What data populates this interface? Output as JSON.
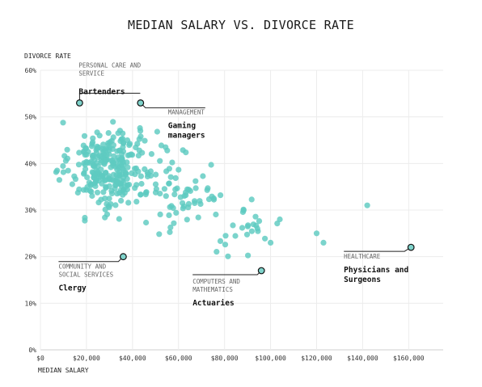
{
  "chart_data": {
    "type": "scatter",
    "title": "MEDIAN SALARY VS. DIVORCE RATE",
    "xlabel": "MEDIAN SALARY",
    "ylabel": "DIVORCE RATE",
    "xlim": [
      0,
      175000
    ],
    "ylim": [
      0,
      60
    ],
    "x_ticks": [
      {
        "value": 0,
        "label": "$0"
      },
      {
        "value": 20000,
        "label": "$20,000"
      },
      {
        "value": 40000,
        "label": "$40,000"
      },
      {
        "value": 60000,
        "label": "$60,000"
      },
      {
        "value": 80000,
        "label": "$80,000"
      },
      {
        "value": 100000,
        "label": "$100,000"
      },
      {
        "value": 120000,
        "label": "$120,000"
      },
      {
        "value": 140000,
        "label": "$140,000"
      },
      {
        "value": 160000,
        "label": "$160,000"
      }
    ],
    "y_ticks": [
      {
        "value": 0,
        "label": "0%"
      },
      {
        "value": 10,
        "label": "10%"
      },
      {
        "value": 20,
        "label": "20%"
      },
      {
        "value": 30,
        "label": "30%"
      },
      {
        "value": 40,
        "label": "40%"
      },
      {
        "value": 50,
        "label": "50%"
      },
      {
        "value": 60,
        "label": "60%"
      }
    ],
    "grid": true,
    "point_color": "#5ecbc1",
    "highlight_color": "#7fd3cb",
    "highlights": [
      {
        "category": [
          "PERSONAL CARE AND",
          "SERVICE"
        ],
        "job": [
          "Bartenders"
        ],
        "x": 17000,
        "y": 53
      },
      {
        "category": [
          "MANAGEMENT"
        ],
        "job": [
          "Gaming",
          "managers"
        ],
        "x": 43500,
        "y": 53
      },
      {
        "category": [
          "COMMUNITY AND",
          "SOCIAL SERVICES"
        ],
        "job": [
          "Clergy"
        ],
        "x": 36000,
        "y": 20
      },
      {
        "category": [
          "COMPUTERS AND",
          "MATHEMATICS"
        ],
        "job": [
          "Actuaries"
        ],
        "x": 96000,
        "y": 17
      },
      {
        "category": [
          "HEALTHCARE"
        ],
        "job": [
          "Physicians and",
          "Surgeons"
        ],
        "x": 161000,
        "y": 22
      }
    ],
    "scatter_clusters": [
      {
        "n": 170,
        "x_mean": 28000,
        "x_sd": 7500,
        "y_mean": 40,
        "y_sd": 4.5,
        "x_min": 2000,
        "x_max": 48000,
        "y_min": 24,
        "y_max": 50.5
      },
      {
        "n": 120,
        "x_mean": 37000,
        "x_sd": 12000,
        "y_mean": 38,
        "y_sd": 4.5,
        "x_min": 5000,
        "x_max": 62000,
        "y_min": 22,
        "y_max": 50
      },
      {
        "n": 50,
        "x_mean": 62000,
        "x_sd": 10000,
        "y_mean": 33,
        "y_sd": 5,
        "x_min": 45000,
        "x_max": 82000,
        "y_min": 19,
        "y_max": 43
      },
      {
        "n": 26,
        "x_mean": 88000,
        "x_sd": 8000,
        "y_mean": 26,
        "y_sd": 3.5,
        "x_min": 72000,
        "x_max": 105000,
        "y_min": 20,
        "y_max": 34
      }
    ],
    "extra_points": [
      {
        "x": 142000,
        "y": 31
      },
      {
        "x": 120000,
        "y": 25
      },
      {
        "x": 123000,
        "y": 23
      },
      {
        "x": 104000,
        "y": 28
      },
      {
        "x": 100000,
        "y": 23
      }
    ]
  }
}
